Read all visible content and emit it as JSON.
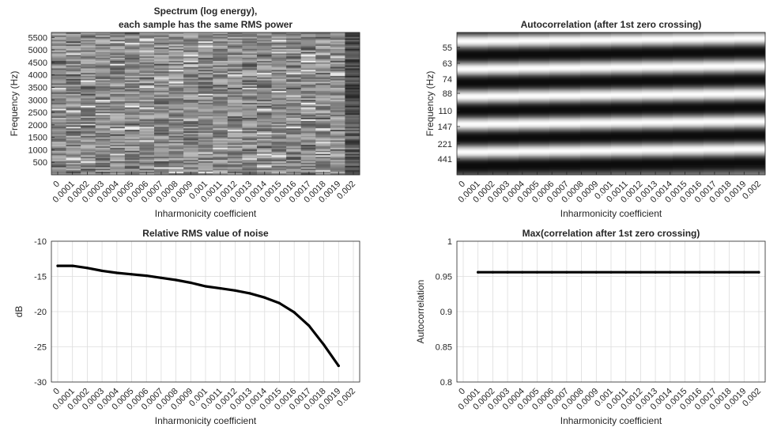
{
  "colors": {
    "line": "#000000",
    "grid": "#dcdcdc",
    "axis": "#262626"
  },
  "chart_data": [
    {
      "type": "heatmap",
      "title_lines": [
        "Spectrum (log energy),",
        "each sample has the same RMS power"
      ],
      "xlabel": "Inharmonicity coefficient",
      "ylabel": "Frequency (Hz)",
      "x_ticks": [
        "0",
        "0.0001",
        "0.0002",
        "0.0003",
        "0.0004",
        "0.0005",
        "0.0006",
        "0.0007",
        "0.0008",
        "0.0009",
        "0.001",
        "0.0011",
        "0.0012",
        "0.0013",
        "0.0014",
        "0.0015",
        "0.0016",
        "0.0017",
        "0.0018",
        "0.0019",
        "0.002"
      ],
      "y_ticks": [
        500,
        1000,
        1500,
        2000,
        2500,
        3000,
        3500,
        4000,
        4500,
        5000,
        5500
      ],
      "ylim": [
        0,
        5700
      ],
      "colormap": "gray"
    },
    {
      "type": "heatmap",
      "title_lines": [
        "Autocorrelation (after 1st zero crossing)"
      ],
      "xlabel": "Inharmonicity coefficient",
      "ylabel": "Frequency (Hz)",
      "x_ticks": [
        "0",
        "0.0001",
        "0.0002",
        "0.0003",
        "0.0004",
        "0.0005",
        "0.0006",
        "0.0007",
        "0.0008",
        "0.0009",
        "0.001",
        "0.0011",
        "0.0012",
        "0.0013",
        "0.0014",
        "0.0015",
        "0.0016",
        "0.0017",
        "0.0018",
        "0.0019",
        "0.002"
      ],
      "y_ticks": [
        "55",
        "63",
        "74",
        "88",
        "110",
        "147",
        "221",
        "441"
      ],
      "colormap": "gray"
    },
    {
      "type": "line",
      "title_lines": [
        "Relative RMS value of noise"
      ],
      "xlabel": "Inharmonicity coefficient",
      "ylabel": "dB",
      "x_ticks": [
        "0",
        "0.0001",
        "0.0002",
        "0.0003",
        "0.0004",
        "0.0005",
        "0.0006",
        "0.0007",
        "0.0008",
        "0.0009",
        "0.001",
        "0.0011",
        "0.0012",
        "0.0013",
        "0.0014",
        "0.0015",
        "0.0016",
        "0.0017",
        "0.0018",
        "0.0019",
        "0.002"
      ],
      "y_ticks": [
        "-30",
        "-25",
        "-20",
        "-15",
        "-10"
      ],
      "xlim": [
        0,
        0.002
      ],
      "ylim": [
        -30,
        -10
      ],
      "x": [
        0,
        0.0001,
        0.0002,
        0.0003,
        0.0004,
        0.0005,
        0.0006,
        0.0007,
        0.0008,
        0.0009,
        0.001,
        0.0011,
        0.0012,
        0.0013,
        0.0014,
        0.0015,
        0.0016,
        0.0017,
        0.0018,
        0.0019
      ],
      "y": [
        -13.5,
        -13.5,
        -13.8,
        -14.2,
        -14.5,
        -14.7,
        -14.9,
        -15.2,
        -15.5,
        -15.9,
        -16.4,
        -16.7,
        -17.0,
        -17.4,
        -18.0,
        -18.8,
        -20.1,
        -22.0,
        -24.7,
        -27.7
      ],
      "grid": true
    },
    {
      "type": "line",
      "title_lines": [
        "Max(correlation after 1st zero crossing)"
      ],
      "xlabel": "Inharmonicity coefficient",
      "ylabel": "Autocorrelation",
      "x_ticks": [
        "0",
        "0.0001",
        "0.0002",
        "0.0003",
        "0.0004",
        "0.0005",
        "0.0006",
        "0.0007",
        "0.0008",
        "0.0009",
        "0.001",
        "0.0011",
        "0.0012",
        "0.0013",
        "0.0014",
        "0.0015",
        "0.0016",
        "0.0017",
        "0.0018",
        "0.0019",
        "0.002"
      ],
      "y_ticks": [
        "0.8",
        "0.85",
        "0.9",
        "0.95",
        "1"
      ],
      "xlim": [
        0,
        0.002
      ],
      "ylim": [
        0.8,
        1
      ],
      "x": [
        0.0001,
        0.0002,
        0.0003,
        0.0004,
        0.0005,
        0.0006,
        0.0007,
        0.0008,
        0.0009,
        0.001,
        0.0011,
        0.0012,
        0.0013,
        0.0014,
        0.0015,
        0.0016,
        0.0017,
        0.0018,
        0.0019,
        0.002
      ],
      "y": [
        0.956,
        0.956,
        0.956,
        0.956,
        0.956,
        0.956,
        0.956,
        0.956,
        0.956,
        0.956,
        0.956,
        0.956,
        0.956,
        0.956,
        0.956,
        0.956,
        0.956,
        0.956,
        0.956,
        0.956
      ],
      "grid": true
    }
  ]
}
